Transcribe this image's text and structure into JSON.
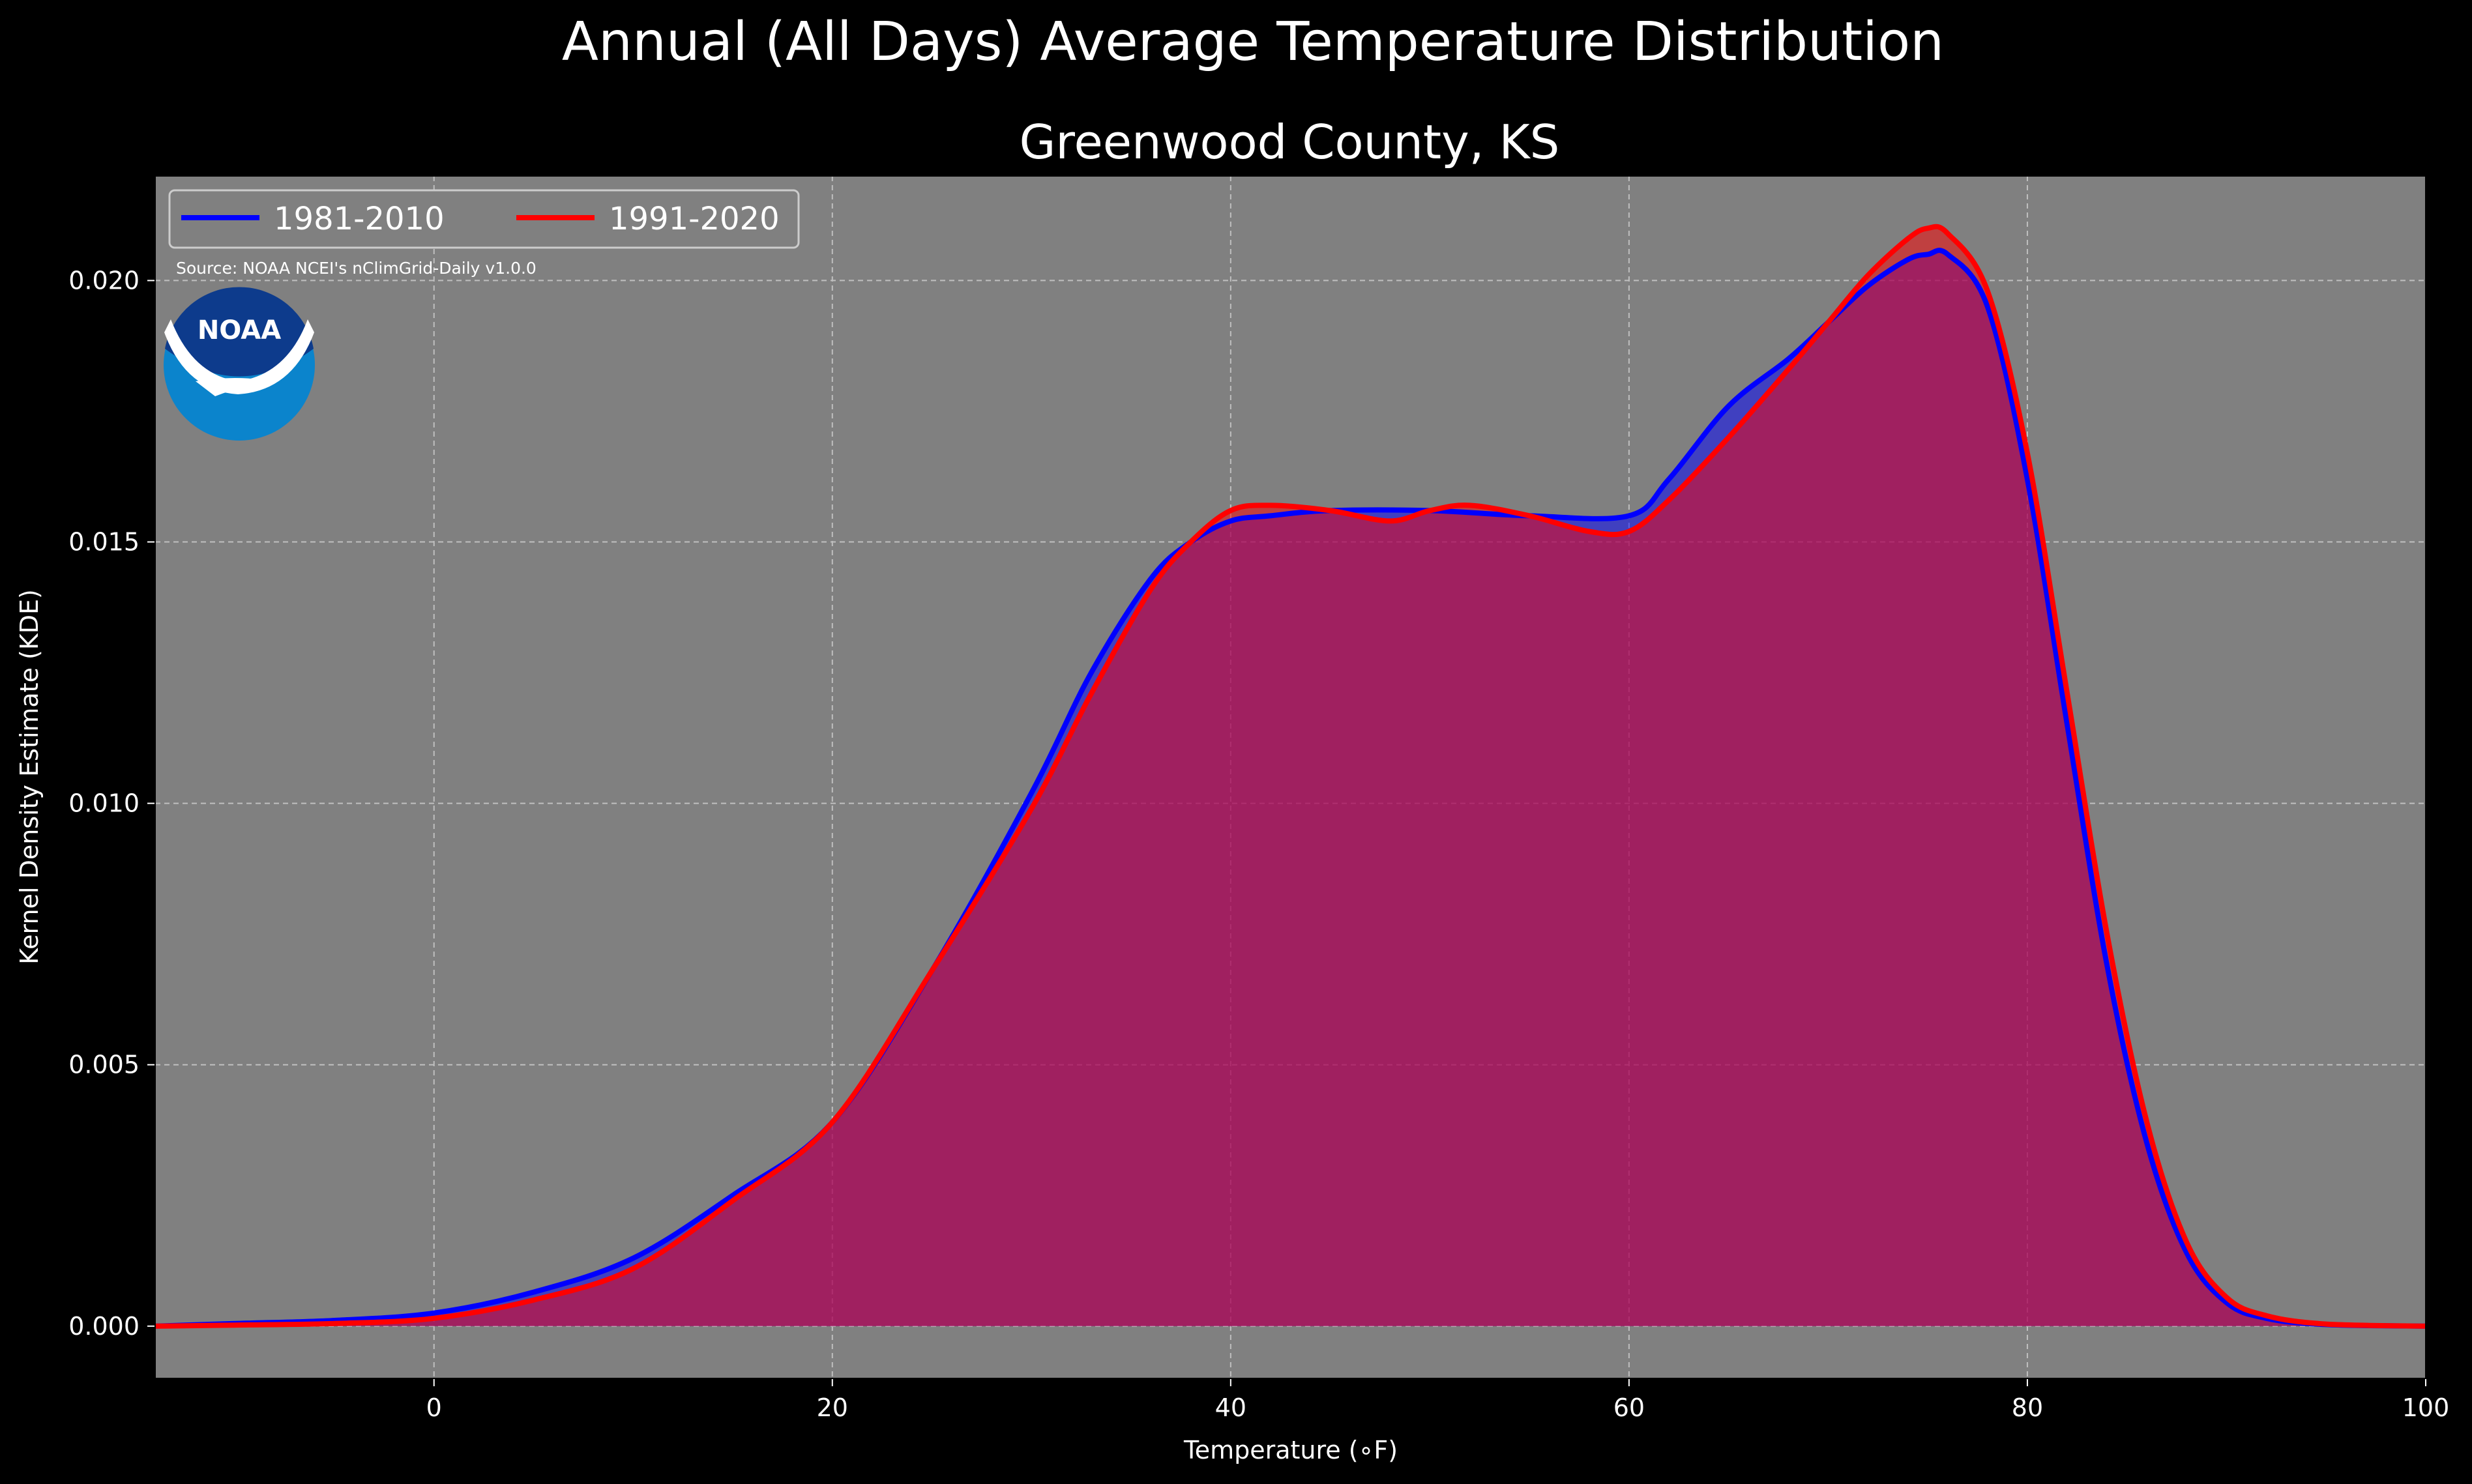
{
  "chart_data": {
    "type": "area",
    "title": "Annual (All Days) Average Temperature Distribution",
    "subtitle": "Greenwood County, KS",
    "xlabel": "Temperature (∘F)",
    "ylabel": "Kernel Density Estimate (KDE)",
    "xlim": [
      -14,
      100
    ],
    "ylim": [
      -0.001,
      0.022
    ],
    "x_ticks": [
      "0",
      "20",
      "40",
      "60",
      "80",
      "100"
    ],
    "x_tick_values": [
      0,
      20,
      40,
      60,
      80,
      100
    ],
    "y_ticks": [
      "0.000",
      "0.005",
      "0.010",
      "0.015",
      "0.020"
    ],
    "y_tick_values": [
      0,
      0.005,
      0.01,
      0.015,
      0.02
    ],
    "grid": true,
    "legend_position": "top-left",
    "annotation": "Source: NOAA NCEI's nClimGrid-Daily v1.0.0",
    "logo_text": "NOAA",
    "series": [
      {
        "name": "1981-2010",
        "color": "#0000ff",
        "x": [
          -14,
          -10,
          -5,
          0,
          5,
          10,
          15,
          20,
          25,
          30,
          33,
          36,
          38,
          40,
          42,
          45,
          50,
          55,
          60,
          62,
          65,
          68,
          70,
          72,
          74,
          75,
          76,
          78,
          80,
          82,
          84,
          86,
          88,
          90,
          92,
          95,
          100
        ],
        "y": [
          0.0,
          5e-05,
          0.00011,
          0.00025,
          0.00065,
          0.0013,
          0.0025,
          0.0039,
          0.0068,
          0.0102,
          0.0125,
          0.0143,
          0.015,
          0.0154,
          0.0155,
          0.0156,
          0.0156,
          0.0155,
          0.0155,
          0.0162,
          0.0176,
          0.0185,
          0.0192,
          0.0199,
          0.0204,
          0.0205,
          0.0205,
          0.0195,
          0.0162,
          0.0115,
          0.0069,
          0.0035,
          0.0014,
          0.00045,
          0.00015,
          3e-05,
          0.0
        ]
      },
      {
        "name": "1991-2020",
        "color": "#ff0000",
        "x": [
          -14,
          -10,
          -5,
          0,
          5,
          10,
          15,
          20,
          25,
          30,
          33,
          36,
          38,
          40,
          42,
          45,
          48,
          50,
          52,
          55,
          58,
          60,
          62,
          65,
          68,
          70,
          72,
          74,
          75,
          76,
          78,
          80,
          82,
          84,
          86,
          88,
          90,
          92,
          95,
          100
        ],
        "y": [
          0.0,
          2e-05,
          5e-05,
          0.00015,
          0.0005,
          0.0011,
          0.0024,
          0.0039,
          0.0068,
          0.0099,
          0.0121,
          0.0141,
          0.015,
          0.0156,
          0.0157,
          0.0156,
          0.0154,
          0.0156,
          0.0157,
          0.0155,
          0.0152,
          0.0152,
          0.0158,
          0.017,
          0.0183,
          0.0192,
          0.0201,
          0.0208,
          0.021,
          0.0209,
          0.0198,
          0.0167,
          0.0121,
          0.0075,
          0.0039,
          0.0016,
          0.00055,
          0.0002,
          4e-05,
          0.0
        ]
      }
    ]
  }
}
